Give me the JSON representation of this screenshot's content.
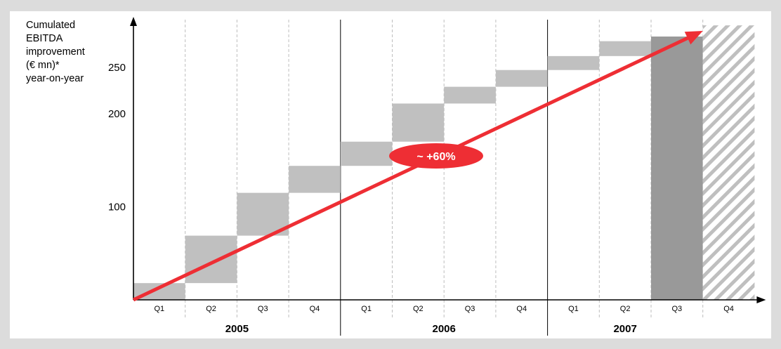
{
  "chart_data": {
    "type": "bar",
    "title": "",
    "ylabel_lines": [
      "Cumulated",
      "EBITDA",
      "improvement",
      "(€ mn)*",
      "year-on-year"
    ],
    "xlabel": "",
    "years": [
      {
        "label": "2005",
        "quarters": [
          "Q1",
          "Q2",
          "Q3",
          "Q4"
        ]
      },
      {
        "label": "2006",
        "quarters": [
          "Q1",
          "Q2",
          "Q3",
          "Q4"
        ]
      },
      {
        "label": "2007",
        "quarters": [
          "Q1",
          "Q2",
          "Q3",
          "Q4"
        ]
      }
    ],
    "y_ticks": [
      100,
      200,
      250
    ],
    "ylim": [
      0,
      295
    ],
    "waterfall": [
      {
        "period": "2005 Q1",
        "start": 0,
        "end": 18
      },
      {
        "period": "2005 Q2",
        "start": 18,
        "end": 69
      },
      {
        "period": "2005 Q3",
        "start": 69,
        "end": 115
      },
      {
        "period": "2005 Q4",
        "start": 115,
        "end": 144
      },
      {
        "period": "2006 Q1",
        "start": 144,
        "end": 170
      },
      {
        "period": "2006 Q2",
        "start": 170,
        "end": 211
      },
      {
        "period": "2006 Q3",
        "start": 211,
        "end": 229
      },
      {
        "period": "2006 Q4",
        "start": 229,
        "end": 247
      },
      {
        "period": "2007 Q1",
        "start": 247,
        "end": 262
      },
      {
        "period": "2007 Q2",
        "start": 262,
        "end": 278
      }
    ],
    "totals": [
      {
        "period": "2007 Q3",
        "value": 283,
        "style": "solid",
        "color": "#999999"
      },
      {
        "period": "2007 Q4",
        "value": 295,
        "style": "hatched",
        "color": "#bfbfbf"
      }
    ],
    "trend": {
      "from": {
        "period": "2005 Q1",
        "y": 0
      },
      "to": {
        "period": "2007 Q3",
        "y": 283
      },
      "color": "#ee2e34"
    },
    "annotation": {
      "text": "~ +60%",
      "color": "#ee2e34"
    },
    "colors": {
      "increment": "#c0c0c0",
      "axis": "#000000",
      "gridline": "#bdbdbd",
      "background": "#dcdcdc"
    },
    "grid": "dashed vertical lines between quarters, solid lines between years",
    "legend": "none"
  }
}
